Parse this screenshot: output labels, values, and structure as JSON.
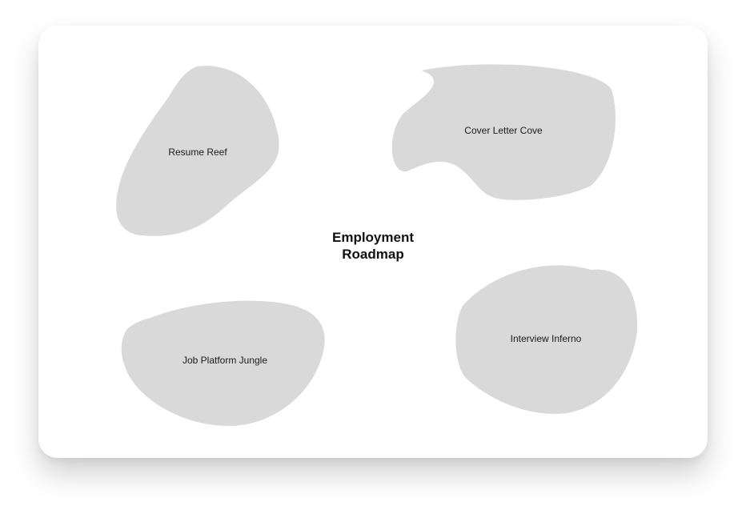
{
  "diagram": {
    "title_line1": "Employment",
    "title_line2": "Roadmap",
    "regions": [
      {
        "id": "resume-reef",
        "label": "Resume Reef"
      },
      {
        "id": "cover-letter-cove",
        "label": "Cover Letter Cove"
      },
      {
        "id": "job-platform-jungle",
        "label": "Job Platform Jungle"
      },
      {
        "id": "interview-inferno",
        "label": "Interview Inferno"
      }
    ],
    "colors": {
      "region_fill": "#d9d9d9",
      "card_background": "#ffffff",
      "text": "#111111"
    }
  }
}
